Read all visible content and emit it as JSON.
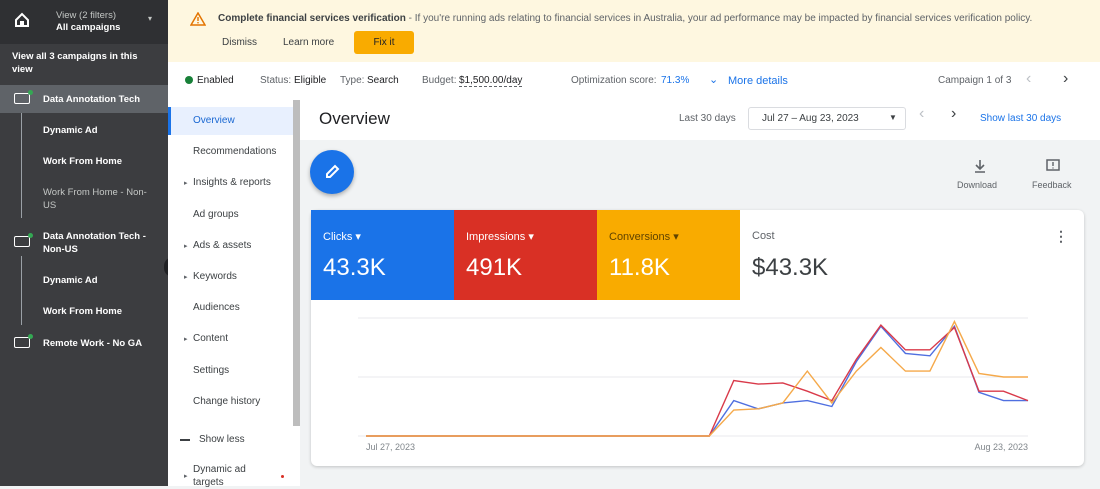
{
  "sidebar": {
    "view_label": "View (2 filters)",
    "view_value": "All campaigns",
    "view_all": "View all 3 campaigns in this view",
    "campaigns": [
      {
        "name": "Data Annotation Tech",
        "ad_groups": [
          "Dynamic Ad",
          "Work From Home",
          "Work From Home - Non-US"
        ]
      },
      {
        "name": "Data Annotation Tech - Non-US",
        "ad_groups": [
          "Dynamic Ad",
          "Work From Home"
        ]
      },
      {
        "name": "Remote Work - No GA",
        "ad_groups": []
      }
    ]
  },
  "banner": {
    "title": "Complete financial services verification",
    "text": " - If you're running ads relating to financial services in Australia, your ad performance may be impacted by financial services verification policy.",
    "buttons": [
      "Dismiss",
      "Learn more",
      "Fix it"
    ]
  },
  "status_bar": {
    "state": "Enabled",
    "status_label": "Status:",
    "status": "Eligible",
    "type_label": "Type:",
    "type": "Search",
    "budget_label": "Budget:",
    "budget": "$1,500.00/day",
    "score_label": "Optimization score:",
    "score": "71.3%",
    "more": "More details",
    "campaign_pos": "Campaign 1 of 3"
  },
  "nav": {
    "items": [
      "Overview",
      "Recommendations",
      "Insights & reports",
      "Ad groups",
      "Ads & assets",
      "Keywords",
      "Audiences",
      "Content",
      "Settings",
      "Change history"
    ],
    "show_less": "Show less",
    "extra": "Dynamic ad targets"
  },
  "header": {
    "title": "Overview",
    "range_label": "Last 30 days",
    "range": "Jul 27 – Aug 23, 2023",
    "show_last": "Show last 30 days",
    "actions": [
      "Download",
      "Feedback"
    ]
  },
  "metrics": [
    {
      "name": "Clicks",
      "value": "43.3K",
      "color": "#1a73e8"
    },
    {
      "name": "Impressions",
      "value": "491K",
      "color": "#d93025"
    },
    {
      "name": "Conversions",
      "value": "11.8K",
      "color": "#f9ab00"
    },
    {
      "name": "Cost",
      "value": "$43.3K"
    }
  ],
  "chart": {
    "type": "line",
    "categories": [
      "Jul 27, 2023",
      null,
      null,
      null,
      null,
      null,
      null,
      null,
      null,
      null,
      null,
      null,
      null,
      null,
      null,
      null,
      null,
      null,
      null,
      null,
      null,
      null,
      null,
      null,
      null,
      null,
      null,
      "Aug 23, 2023"
    ],
    "ylim": [
      0,
      100
    ],
    "series": [
      {
        "color": "#4f6fe0",
        "values": [
          0,
          0,
          0,
          0,
          0,
          0,
          0,
          0,
          0,
          0,
          0,
          0,
          0,
          0,
          0,
          30,
          23,
          28,
          30,
          25,
          63,
          93,
          70,
          68,
          93,
          37,
          30,
          30
        ]
      },
      {
        "color": "#d93a4a",
        "values": [
          0,
          0,
          0,
          0,
          0,
          0,
          0,
          0,
          0,
          0,
          0,
          0,
          0,
          0,
          0,
          47,
          44,
          45,
          38,
          30,
          65,
          94,
          73,
          73,
          92,
          38,
          38,
          30
        ]
      },
      {
        "color": "#f5a94a",
        "values": [
          0,
          0,
          0,
          0,
          0,
          0,
          0,
          0,
          0,
          0,
          0,
          0,
          0,
          0,
          0,
          22,
          23,
          28,
          55,
          28,
          55,
          75,
          55,
          55,
          97,
          53,
          50,
          50
        ]
      }
    ]
  }
}
